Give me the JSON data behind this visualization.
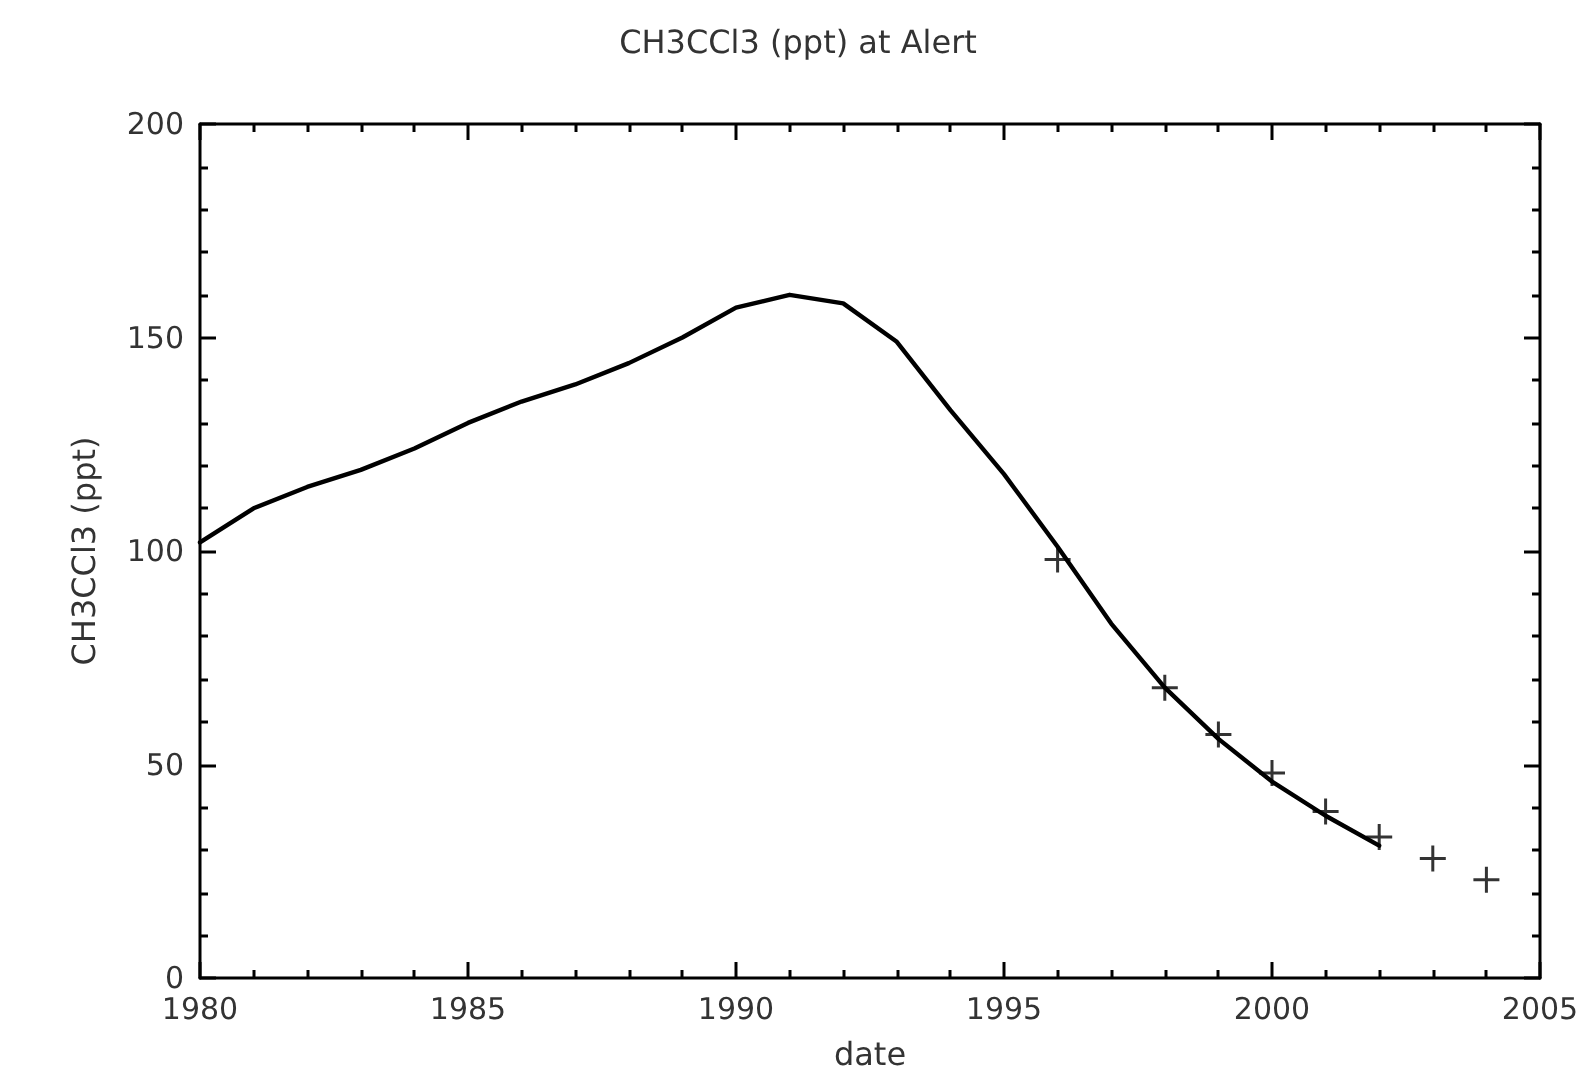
{
  "chart_data": {
    "type": "line",
    "title": "CH3CCl3 (ppt) at Alert",
    "xlabel": "date",
    "ylabel": "CH3CCl3 (ppt)",
    "xlim": [
      1980,
      2005
    ],
    "xticks": [
      1980,
      1985,
      1990,
      1995,
      2000,
      2005
    ],
    "ylim": [
      0,
      200
    ],
    "yticks": [
      0,
      50,
      100,
      150,
      200
    ],
    "grid": false,
    "series": [
      {
        "color": "#000000",
        "marker": "none",
        "line_style": "solid",
        "x": [
          1980,
          1981,
          1982,
          1983,
          1984,
          1985,
          1986,
          1987,
          1988,
          1989,
          1990,
          1991,
          1992,
          1993,
          1994,
          1995,
          1996,
          1997,
          1998,
          1999,
          2000,
          2001,
          2002
        ],
        "values": [
          102,
          110,
          115,
          119,
          124,
          130,
          135,
          139,
          144,
          150,
          157,
          160,
          158,
          149,
          133,
          118,
          101,
          83,
          68,
          56,
          46,
          38,
          31
        ]
      },
      {
        "type": "scatter",
        "color": "#000000",
        "marker": "cross",
        "x": [
          1996,
          1998,
          1999,
          2000,
          2001,
          2002,
          2003,
          2004
        ],
        "values": [
          98,
          68,
          57,
          48,
          39,
          33,
          28,
          23
        ]
      }
    ]
  }
}
